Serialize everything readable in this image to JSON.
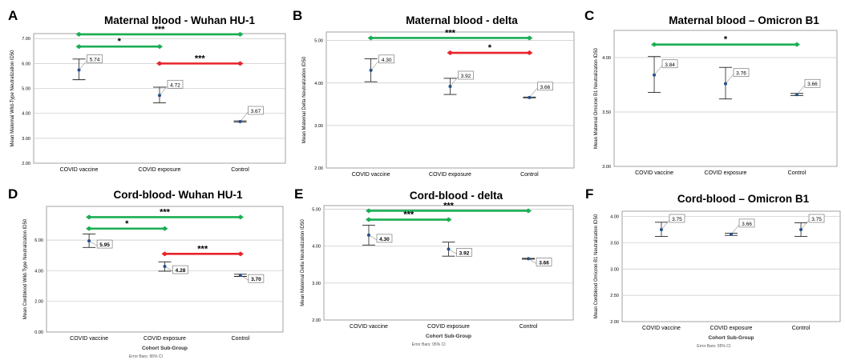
{
  "chart_data": [
    {
      "panel": "A",
      "title": "Maternal blood - Wuhan HU-1",
      "type": "scatter",
      "ylabel": "Mean Maternal Wild-Type Neutralization ID50",
      "xlabel": "",
      "categories": [
        "COVID vaccine",
        "COVID exposure",
        "Control"
      ],
      "means": [
        5.74,
        4.72,
        3.67
      ],
      "ci_low": [
        5.35,
        4.42,
        3.65
      ],
      "ci_high": [
        6.18,
        5.05,
        3.7
      ],
      "value_labels": [
        "5.74",
        "4.72",
        "3.67"
      ],
      "ylim": [
        2.0,
        7.2
      ],
      "yticks": [
        "2.00",
        "3.00",
        "4.00",
        "5.00",
        "6.00",
        "7.00"
      ],
      "yticks_values": [
        2,
        3,
        4,
        5,
        6,
        7
      ],
      "gridlines": [
        3,
        4,
        5,
        6,
        7
      ],
      "brackets": [
        {
          "from": 0,
          "to": 2,
          "y": 7.17,
          "label": "***",
          "color": "#1aaf54"
        },
        {
          "from": 0,
          "to": 1,
          "y": 6.68,
          "label": "*",
          "color": "#1aaf54"
        },
        {
          "from": 1,
          "to": 2,
          "y": 6.0,
          "label": "***",
          "color": "#e8242b"
        }
      ],
      "footer": [],
      "label_side": "right"
    },
    {
      "panel": "B",
      "title": "Maternal blood - delta",
      "type": "scatter",
      "ylabel": "Mean Maternal Delta Neutralization ID50",
      "xlabel": "",
      "categories": [
        "COVID vaccine",
        "COVID exposure",
        "Control"
      ],
      "means": [
        4.3,
        3.92,
        3.66
      ],
      "ci_low": [
        4.03,
        3.73,
        3.65
      ],
      "ci_high": [
        4.57,
        4.11,
        3.67
      ],
      "value_labels": [
        "4.30",
        "3.92",
        "3.66"
      ],
      "ylim": [
        2.0,
        5.2
      ],
      "yticks": [
        "2.00",
        "3.00",
        "4.00",
        "5.00"
      ],
      "yticks_values": [
        2,
        3,
        4,
        5
      ],
      "gridlines": [
        3,
        4,
        5
      ],
      "brackets": [
        {
          "from": 0,
          "to": 2,
          "y": 5.06,
          "label": "***",
          "color": "#1aaf54"
        },
        {
          "from": 1,
          "to": 2,
          "y": 4.71,
          "label": "*",
          "color": "#e8242b"
        }
      ],
      "footer": [],
      "label_side": "right"
    },
    {
      "panel": "C",
      "title": "Maternal blood – Omicron B1",
      "type": "scatter",
      "ylabel": "Mean Maternal Omicron B1 Neutralization ID50",
      "xlabel": "",
      "categories": [
        "COVID vaccine",
        "COVID exposure",
        "Control"
      ],
      "means": [
        3.84,
        3.76,
        3.66
      ],
      "ci_low": [
        3.68,
        3.62,
        3.65
      ],
      "ci_high": [
        4.01,
        3.91,
        3.67
      ],
      "value_labels": [
        "3.84",
        "3.76",
        "3.66"
      ],
      "ylim": [
        3.0,
        4.25
      ],
      "yticks": [
        "3.00",
        "3.50",
        "4.00"
      ],
      "yticks_values": [
        3.0,
        3.5,
        4.0
      ],
      "gridlines": [
        3.5,
        4.0
      ],
      "brackets": [
        {
          "from": 0,
          "to": 2,
          "y": 4.12,
          "label": "*",
          "color": "#1aaf54"
        }
      ],
      "footer": [],
      "label_side": "right"
    },
    {
      "panel": "D",
      "title": "Cord-blood- Wuhan HU-1",
      "type": "scatter",
      "ylabel": "Mean Cordblood Wild-Type Neutralization ID50",
      "xlabel": "Cohort Sub-Group",
      "categories": [
        "COVID vaccine",
        "COVID exposure",
        "Control"
      ],
      "means": [
        5.95,
        4.28,
        3.7
      ],
      "ci_low": [
        5.52,
        3.97,
        3.63
      ],
      "ci_high": [
        6.4,
        4.58,
        3.77
      ],
      "value_labels": [
        "5.95",
        "4.28",
        "3.70"
      ],
      "ylim": [
        0,
        8.2
      ],
      "yticks": [
        "0.00",
        "2.00",
        "4.00",
        "6.00"
      ],
      "yticks_values": [
        0,
        2,
        4,
        6
      ],
      "gridlines": [
        2,
        4,
        6
      ],
      "brackets": [
        {
          "from": 0,
          "to": 2,
          "y": 7.5,
          "label": "***",
          "color": "#1aaf54"
        },
        {
          "from": 0,
          "to": 1,
          "y": 6.75,
          "label": "*",
          "color": "#1aaf54"
        },
        {
          "from": 1,
          "to": 2,
          "y": 5.1,
          "label": "***",
          "color": "#e8242b"
        }
      ],
      "footer": [
        "Error Bars: 95% CI"
      ],
      "label_side": "right-low"
    },
    {
      "panel": "E",
      "title": "Cord-blood - delta",
      "type": "scatter",
      "ylabel": "Mean Maternal Delta Neutralization ID50",
      "xlabel": "Cohort Sub-Group",
      "categories": [
        "COVID vaccine",
        "COVID exposure",
        "Control"
      ],
      "means": [
        4.3,
        3.92,
        3.66
      ],
      "ci_low": [
        4.03,
        3.73,
        3.65
      ],
      "ci_high": [
        4.57,
        4.11,
        3.67
      ],
      "value_labels": [
        "4.30",
        "3.92",
        "3.66"
      ],
      "ylim": [
        2.0,
        5.1
      ],
      "yticks": [
        "2.00",
        "3.00",
        "4.00",
        "5.00"
      ],
      "yticks_values": [
        2,
        3,
        4,
        5
      ],
      "gridlines": [
        3,
        4,
        5
      ],
      "brackets": [
        {
          "from": 0,
          "to": 2,
          "y": 4.96,
          "label": "***",
          "color": "#1aaf54"
        },
        {
          "from": 0,
          "to": 1,
          "y": 4.72,
          "label": "***",
          "color": "#1aaf54"
        }
      ],
      "footer": [
        "Error Bars: 95% CI"
      ],
      "label_side": "right-low"
    },
    {
      "panel": "F",
      "title": "Cord-blood – Omicron B1",
      "type": "scatter",
      "ylabel": "Mean Cordblood Omicron B1 Neutralization ID50",
      "xlabel": "Cohort Sub-Group",
      "categories": [
        "COVID vaccine",
        "COVID exposure",
        "Control"
      ],
      "means": [
        3.75,
        3.66,
        3.75
      ],
      "ci_low": [
        3.62,
        3.64,
        3.62
      ],
      "ci_high": [
        3.89,
        3.68,
        3.88
      ],
      "value_labels": [
        "3.75",
        "3.66",
        "3.75"
      ],
      "ylim": [
        2.0,
        4.1
      ],
      "yticks": [
        "2.00",
        "2.50",
        "3.00",
        "3.50",
        "4.00"
      ],
      "yticks_values": [
        2.0,
        2.5,
        3.0,
        3.5,
        4.0
      ],
      "gridlines": [
        2.5,
        3.0,
        3.5,
        4.0
      ],
      "brackets": [],
      "footer": [
        "Error Bars: 95% CI"
      ],
      "label_side": "right"
    }
  ],
  "colors": {
    "mean_point": "#1f4e8c",
    "error_bar": "#222222",
    "frame": "#8c8c8c",
    "grid": "#c8c8c8",
    "green": "#1aaf54",
    "red": "#e8242b",
    "text": "#000000"
  }
}
